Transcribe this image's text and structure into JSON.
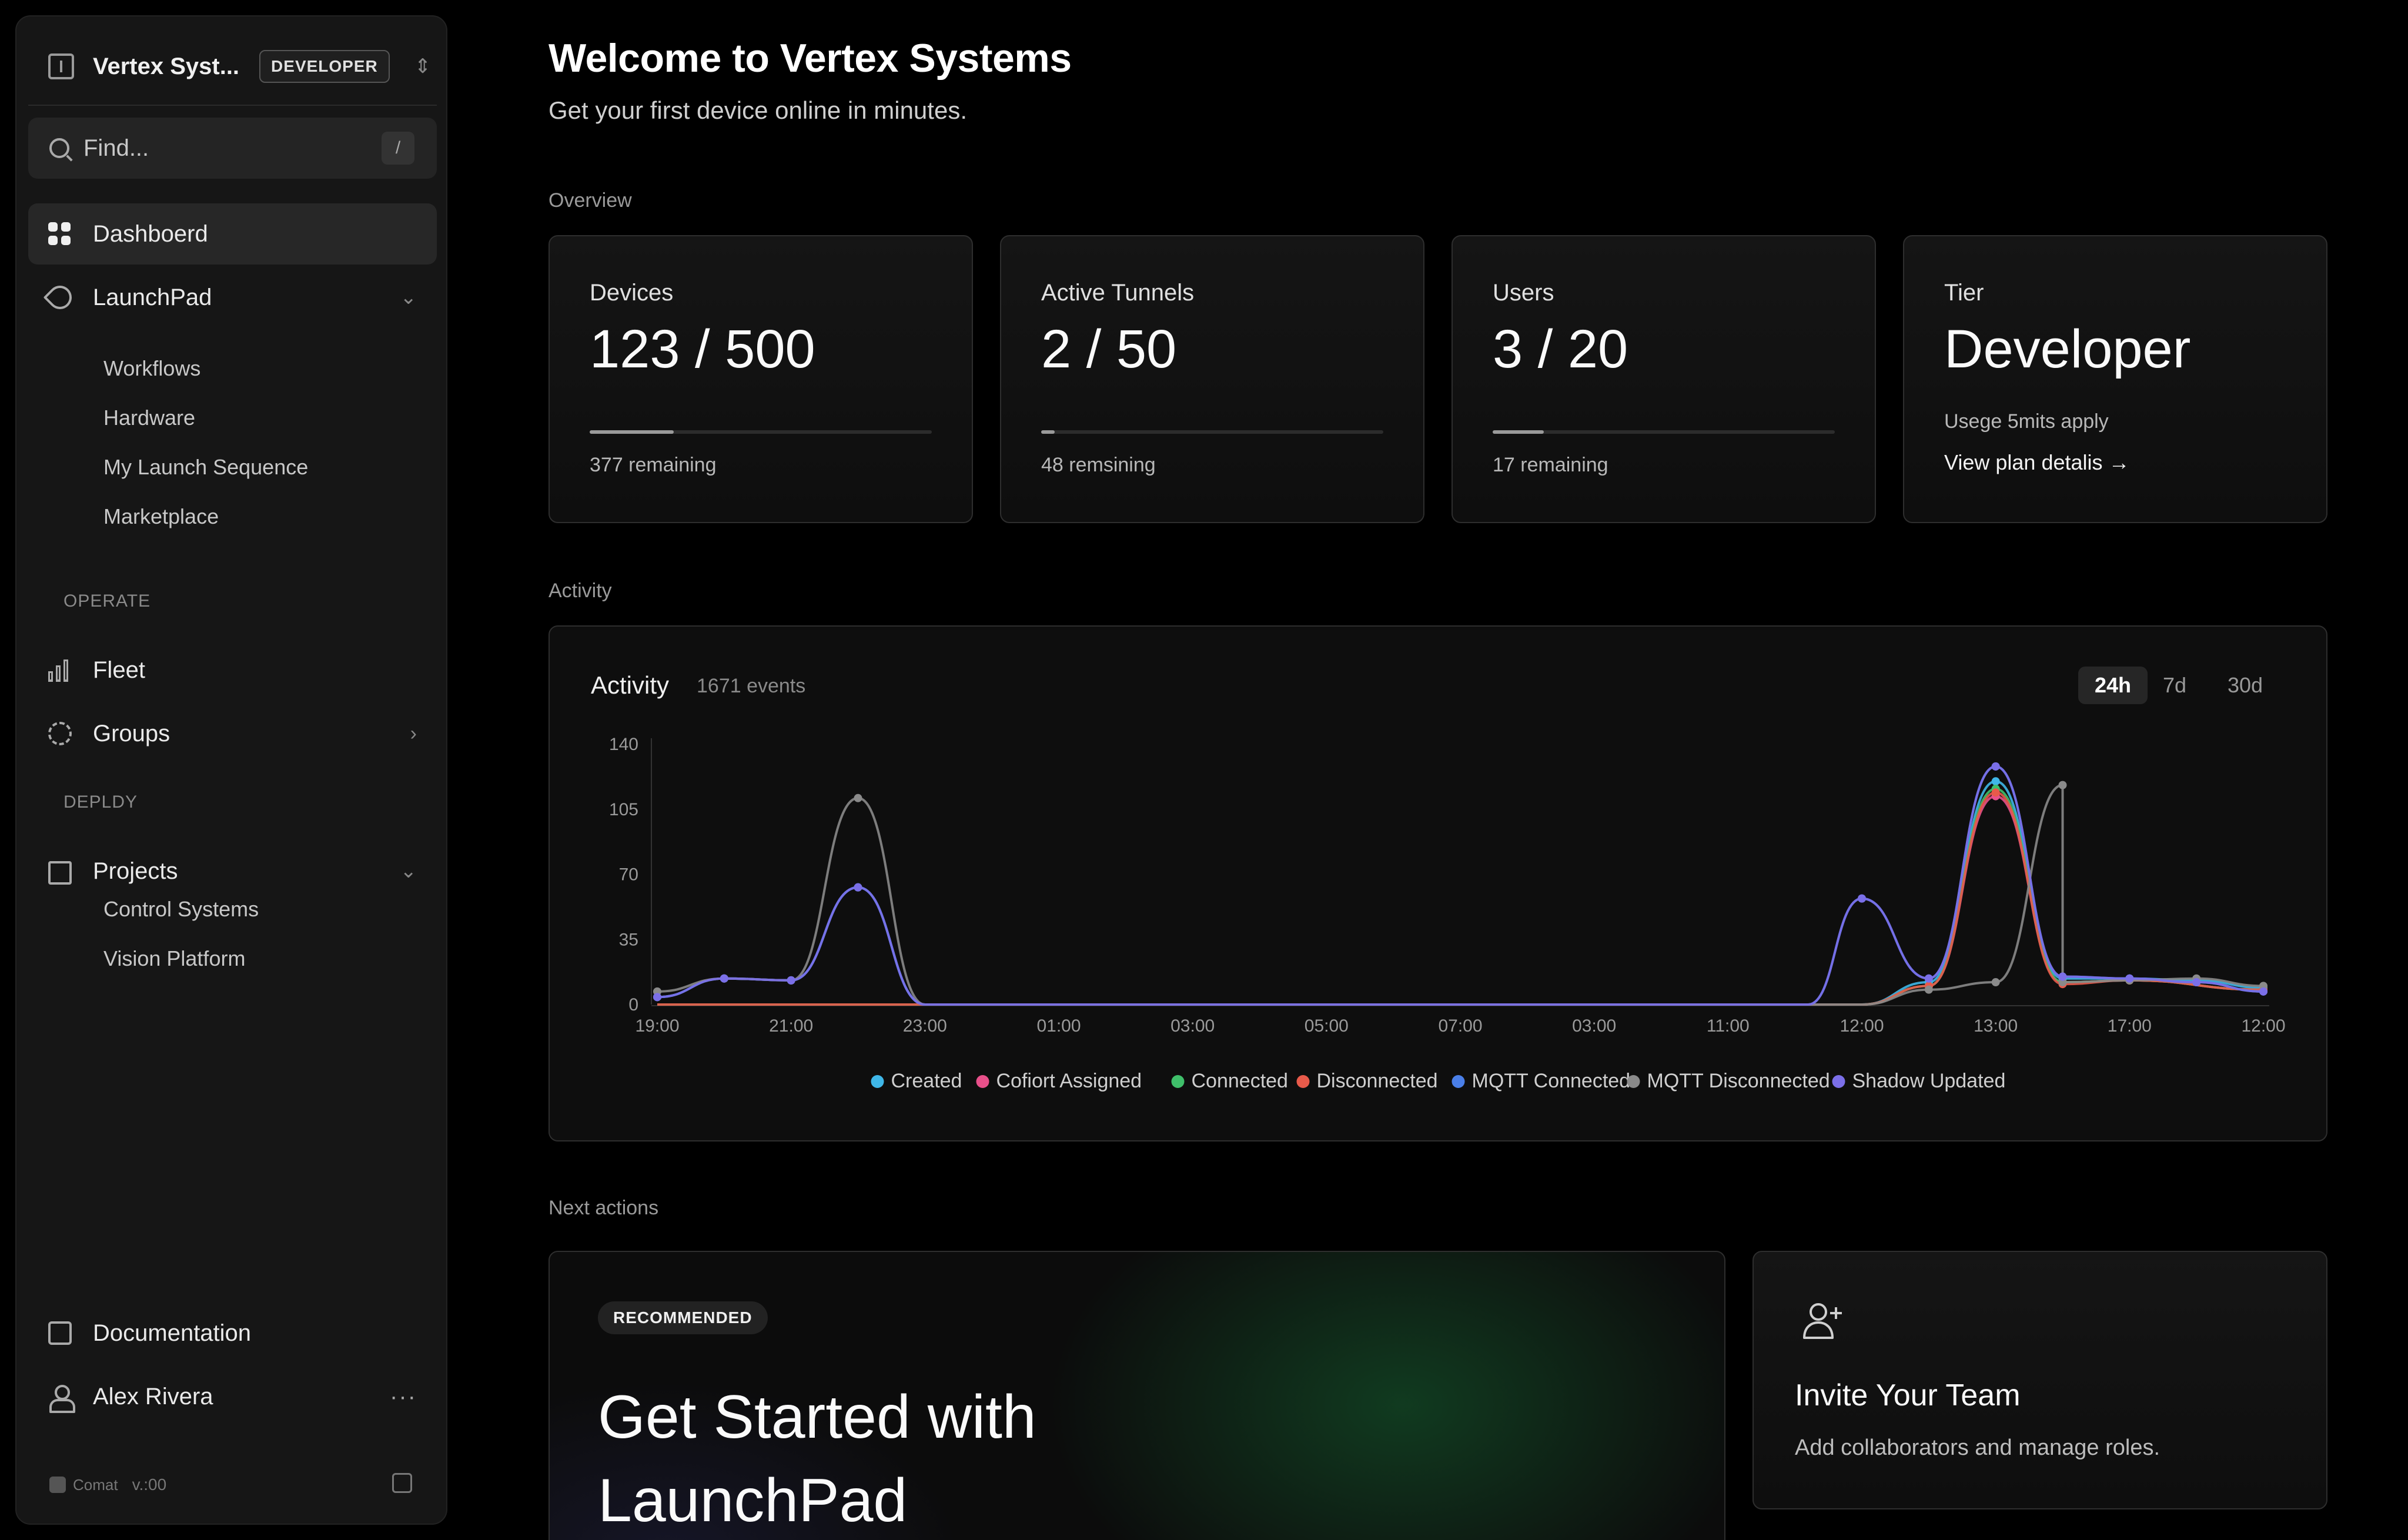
{
  "sidebar": {
    "org_name": "Vertex Syst...",
    "org_badge": "DEVELOPER",
    "search_placeholder": "Find...",
    "search_shortcut": "/",
    "nav": {
      "dashboard": "Dashboerd",
      "launchpad": "LaunchPad",
      "launchpad_items": [
        "Workflows",
        "Hardware",
        "My Launch Sequence",
        "Marketplace"
      ],
      "operate_label": "OPERATE",
      "fleet": "Fleet",
      "groups": "Groups",
      "deploy_label": "DEPLDY",
      "projects": "Projects",
      "projects_items": [
        "Control Systems",
        "Vision Platform"
      ],
      "documentation": "Documentation",
      "user": "Alex Rivera",
      "more": "···"
    },
    "footer": {
      "brand": "Comat",
      "version": "v.:00"
    }
  },
  "header": {
    "title": "Welcome to Vertex Systems",
    "subtitle": "Get your first device online in minutes."
  },
  "overview": {
    "label": "Overview",
    "cards": [
      {
        "label": "Devices",
        "value": "123 / 500",
        "note": "377 remaining",
        "used_fraction": 0.246
      },
      {
        "label": "Active Tunnels",
        "value": "2 / 50",
        "note": "48 remsining",
        "used_fraction": 0.04
      },
      {
        "label": "Users",
        "value": "3 / 20",
        "note": "17 remaining",
        "used_fraction": 0.15
      }
    ],
    "tier": {
      "label": "Tier",
      "value": "Developer",
      "note": "Usege 5mits apply",
      "link": "View plan detalis →"
    }
  },
  "activity": {
    "section_label": "Activity",
    "title": "Activity",
    "count": "1671 events",
    "ranges": [
      "24h",
      "7d",
      "30d"
    ],
    "active_range": "24h"
  },
  "chart_data": {
    "type": "line",
    "title": "Activity",
    "x": [
      "19:00",
      "21:00",
      "23:00",
      "01:00",
      "03:00",
      "05:00",
      "07:00",
      "03:00",
      "11:00",
      "12:00",
      "13:00",
      "17:00",
      "12:00"
    ],
    "yticks": [
      0,
      35,
      70,
      105,
      140
    ],
    "ylim": [
      0,
      140
    ],
    "grid": false,
    "legend_position": "bottom",
    "series": [
      {
        "name": "Created",
        "color": "#3fb7e8",
        "points": [
          [
            0,
            4
          ],
          [
            0.5,
            14
          ],
          [
            1,
            13
          ],
          [
            1.5,
            63
          ],
          [
            2,
            0
          ],
          [
            9,
            0
          ],
          [
            9.5,
            12
          ],
          [
            10,
            120
          ],
          [
            10.5,
            14
          ],
          [
            11,
            14
          ],
          [
            11.5,
            13
          ],
          [
            12,
            9
          ]
        ]
      },
      {
        "name": "Cofiort Assigned",
        "color": "#e8508a",
        "points": [
          [
            0,
            0
          ],
          [
            9,
            0
          ],
          [
            9.5,
            10
          ],
          [
            10,
            112
          ],
          [
            10.5,
            12
          ],
          [
            11,
            13
          ],
          [
            12,
            8
          ]
        ]
      },
      {
        "name": "Connected",
        "color": "#3fbf6a",
        "points": [
          [
            0,
            0
          ],
          [
            9,
            0
          ],
          [
            9.5,
            10
          ],
          [
            10,
            116
          ],
          [
            10.5,
            12
          ],
          [
            11,
            13
          ],
          [
            12,
            8
          ]
        ]
      },
      {
        "name": "Disconnected",
        "color": "#e85a4a",
        "points": [
          [
            0,
            0
          ],
          [
            9,
            0
          ],
          [
            9.5,
            10
          ],
          [
            10,
            114
          ],
          [
            10.5,
            11
          ],
          [
            11,
            13
          ],
          [
            12,
            8
          ]
        ]
      },
      {
        "name": "MQTT Connected",
        "color": "#4a7fe8",
        "points": [
          [
            0,
            4
          ],
          [
            0.5,
            14
          ],
          [
            1,
            13
          ],
          [
            1.5,
            63
          ],
          [
            2,
            0
          ],
          [
            8.6,
            0
          ],
          [
            9,
            57
          ],
          [
            9.5,
            14
          ],
          [
            10,
            128
          ],
          [
            10.5,
            15
          ],
          [
            11,
            14
          ],
          [
            11.5,
            12
          ],
          [
            12,
            7
          ]
        ]
      },
      {
        "name": "MQTT Disconnected",
        "color": "#8a8a8a",
        "points": [
          [
            0,
            7
          ],
          [
            0.5,
            14
          ],
          [
            1,
            13
          ],
          [
            1.5,
            111
          ],
          [
            2,
            0
          ],
          [
            9,
            0
          ],
          [
            9.5,
            8
          ],
          [
            10,
            12
          ],
          [
            10.5,
            118
          ],
          [
            10.5,
            12
          ],
          [
            11,
            13
          ],
          [
            11.5,
            14
          ],
          [
            12,
            10
          ]
        ]
      },
      {
        "name": "Shadow Updated",
        "color": "#7b6fe8",
        "points": [
          [
            0,
            4
          ],
          [
            0.5,
            14
          ],
          [
            1,
            13
          ],
          [
            1.5,
            63
          ],
          [
            2,
            0
          ],
          [
            8.6,
            0
          ],
          [
            9,
            57
          ],
          [
            9.5,
            14
          ],
          [
            10,
            128
          ],
          [
            10.5,
            15
          ],
          [
            11,
            14
          ],
          [
            11.5,
            12
          ],
          [
            12,
            7
          ]
        ]
      }
    ]
  },
  "next_actions": {
    "label": "Next actions",
    "cta": {
      "badge": "RECOMMENDED",
      "title": "Get Started with LaunchPad"
    },
    "invite": {
      "title": "Invite Your Team",
      "desc": "Add collaborators and manage roles."
    }
  },
  "colors": {
    "background": "#000000",
    "sidebar": "#161616",
    "card_border": "#2e2e2e"
  }
}
